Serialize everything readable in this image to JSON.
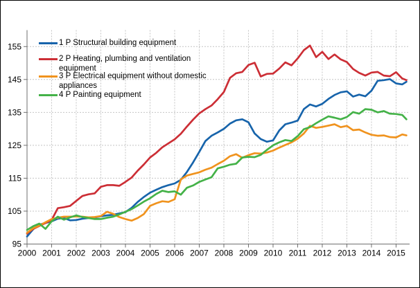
{
  "chart_data": {
    "type": "line",
    "title": "",
    "xlabel": "",
    "ylabel": "",
    "x": [
      2000,
      2000.25,
      2000.5,
      2000.75,
      2001,
      2001.25,
      2001.5,
      2001.75,
      2002,
      2002.25,
      2002.5,
      2002.75,
      2003,
      2003.25,
      2003.5,
      2003.75,
      2004,
      2004.25,
      2004.5,
      2004.75,
      2005,
      2005.25,
      2005.5,
      2005.75,
      2006,
      2006.25,
      2006.5,
      2006.75,
      2007,
      2007.25,
      2007.5,
      2007.75,
      2008,
      2008.25,
      2008.5,
      2008.75,
      2009,
      2009.25,
      2009.5,
      2009.75,
      2010,
      2010.25,
      2010.5,
      2010.75,
      2011,
      2011.25,
      2011.5,
      2011.75,
      2012,
      2012.25,
      2012.5,
      2012.75,
      2013,
      2013.25,
      2013.5,
      2013.75,
      2014,
      2014.25,
      2014.5,
      2014.75,
      2015,
      2015.25,
      2015.42
    ],
    "series": [
      {
        "name": "1 P Structural building equipment",
        "color": "#1764ab",
        "values": [
          97.3,
          99.5,
          100.9,
          101.4,
          101.9,
          102.7,
          102.9,
          102.2,
          102.3,
          102.7,
          102.9,
          103.1,
          103.4,
          103.7,
          103.9,
          104.3,
          104.7,
          106,
          107.8,
          109.3,
          110.6,
          111.5,
          112.3,
          112.9,
          113.4,
          114.5,
          116.9,
          119.8,
          123,
          126.3,
          127.9,
          128.9,
          130,
          131.6,
          132.6,
          132.9,
          132,
          128.6,
          126.9,
          126.1,
          126.5,
          129.5,
          131.4,
          131.9,
          132.5,
          136,
          137.4,
          136.8,
          137.6,
          139.1,
          140.3,
          141.1,
          141.4,
          139.8,
          140.4,
          139.9,
          141.6,
          144.6,
          144.8,
          145.1,
          143.8,
          143.5,
          144.3
        ]
      },
      {
        "name": "2 P Heating, plumbing and ventilation equipment",
        "color": "#cc2e35",
        "values": [
          98.2,
          99.6,
          100.5,
          101.4,
          102.3,
          105.9,
          106.2,
          106.6,
          108.1,
          109.6,
          110.1,
          110.4,
          112.4,
          112.9,
          112.9,
          112.7,
          113.9,
          115.2,
          117.3,
          119.2,
          121.3,
          122.7,
          124.4,
          125.6,
          126.8,
          128.5,
          130.7,
          132.8,
          134.7,
          136,
          137.1,
          139,
          141.2,
          145.5,
          146.9,
          147.3,
          149.4,
          150.1,
          145.9,
          146.7,
          146.8,
          148.3,
          150.2,
          149.3,
          151.4,
          153.9,
          155.3,
          151.8,
          153.4,
          151.2,
          152.6,
          151.1,
          150.3,
          148.2,
          147,
          146.2,
          147.1,
          147.3,
          146.2,
          146,
          147.2,
          145.3,
          144.8
        ]
      },
      {
        "name": "3 P Electrical equipment without domestic appliances",
        "color": "#f0931e",
        "values": [
          98.4,
          99.8,
          100.6,
          101.6,
          102.6,
          103,
          103.3,
          103.3,
          103.4,
          103.3,
          103.1,
          103.2,
          103.5,
          104.8,
          104.2,
          103.2,
          102.6,
          102.1,
          102.9,
          104.1,
          106.6,
          107.4,
          108,
          107.8,
          108.6,
          114.6,
          115.8,
          116.3,
          116.8,
          117.6,
          118.2,
          119.3,
          120.3,
          121.7,
          122.3,
          121.2,
          122,
          122.6,
          122.5,
          122.8,
          123.4,
          124.3,
          125.1,
          125.9,
          127,
          128.6,
          130.9,
          130.3,
          130.6,
          131,
          131.4,
          130.5,
          130.9,
          129.6,
          129.8,
          128.9,
          128.2,
          127.9,
          128,
          127.5,
          127.4,
          128.3,
          128
        ]
      },
      {
        "name": "4 P Painting equipment",
        "color": "#44b248",
        "values": [
          99.3,
          100.4,
          101.2,
          99.6,
          101.9,
          103.3,
          102.4,
          103.1,
          103.7,
          103.2,
          102.9,
          102.6,
          102.6,
          103,
          103.3,
          104,
          104.8,
          105.6,
          106.7,
          107.9,
          108.9,
          110.2,
          111.2,
          110.8,
          111,
          110,
          112.1,
          112.8,
          113.9,
          114.6,
          115.3,
          118,
          118.5,
          119.1,
          119.4,
          121.3,
          121.5,
          121.4,
          122.1,
          123.6,
          125,
          125.9,
          126.6,
          126.3,
          127.8,
          129.9,
          130.5,
          131.7,
          132.8,
          133.8,
          133.4,
          132.9,
          133.6,
          135.1,
          134.6,
          136,
          135.8,
          135,
          135.4,
          134.6,
          134.5,
          134.2,
          132.9
        ]
      }
    ],
    "xticks": [
      2000,
      2001,
      2002,
      2003,
      2004,
      2005,
      2006,
      2007,
      2008,
      2009,
      2010,
      2011,
      2012,
      2013,
      2014,
      2015
    ],
    "yticks": [
      95,
      105,
      115,
      125,
      135,
      145,
      155
    ],
    "xlim": [
      2000,
      2015.55
    ],
    "ylim": [
      95,
      160
    ],
    "grid": true,
    "legend_position": "top-left",
    "grid_color": "#c4c4c4",
    "axis_color": "#6e6e6e",
    "text_color": "#000000",
    "background": "#ffffff",
    "border_color": "#000000"
  }
}
